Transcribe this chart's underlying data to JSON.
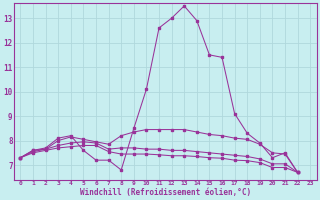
{
  "xlabel": "Windchill (Refroidissement éolien,°C)",
  "background_color": "#c8eef0",
  "grid_color": "#b0d8dc",
  "line_color": "#993399",
  "spine_color": "#993399",
  "xlim": [
    -0.5,
    23.5
  ],
  "ylim": [
    6.4,
    13.6
  ],
  "xticks": [
    0,
    1,
    2,
    3,
    4,
    5,
    6,
    7,
    8,
    9,
    10,
    11,
    12,
    13,
    14,
    15,
    16,
    17,
    18,
    19,
    20,
    21,
    22,
    23
  ],
  "yticks": [
    7,
    8,
    9,
    10,
    11,
    12,
    13
  ],
  "series": [
    [
      7.3,
      7.6,
      7.7,
      8.1,
      8.2,
      7.6,
      7.2,
      7.2,
      6.8,
      8.5,
      10.1,
      12.6,
      13.0,
      13.5,
      12.9,
      11.5,
      11.4,
      9.1,
      8.3,
      7.9,
      7.3,
      7.5,
      6.7
    ],
    [
      7.3,
      7.6,
      7.65,
      8.0,
      8.15,
      8.05,
      7.95,
      7.85,
      8.2,
      8.35,
      8.45,
      8.45,
      8.45,
      8.45,
      8.35,
      8.25,
      8.2,
      8.1,
      8.05,
      7.85,
      7.5,
      7.45,
      6.7
    ],
    [
      7.3,
      7.55,
      7.65,
      7.8,
      7.9,
      7.95,
      7.9,
      7.65,
      7.7,
      7.7,
      7.65,
      7.65,
      7.6,
      7.6,
      7.55,
      7.5,
      7.45,
      7.4,
      7.35,
      7.25,
      7.05,
      7.05,
      6.7
    ],
    [
      7.3,
      7.5,
      7.6,
      7.7,
      7.75,
      7.8,
      7.8,
      7.55,
      7.45,
      7.45,
      7.45,
      7.42,
      7.38,
      7.38,
      7.35,
      7.3,
      7.28,
      7.2,
      7.18,
      7.1,
      6.9,
      6.9,
      6.7
    ]
  ]
}
